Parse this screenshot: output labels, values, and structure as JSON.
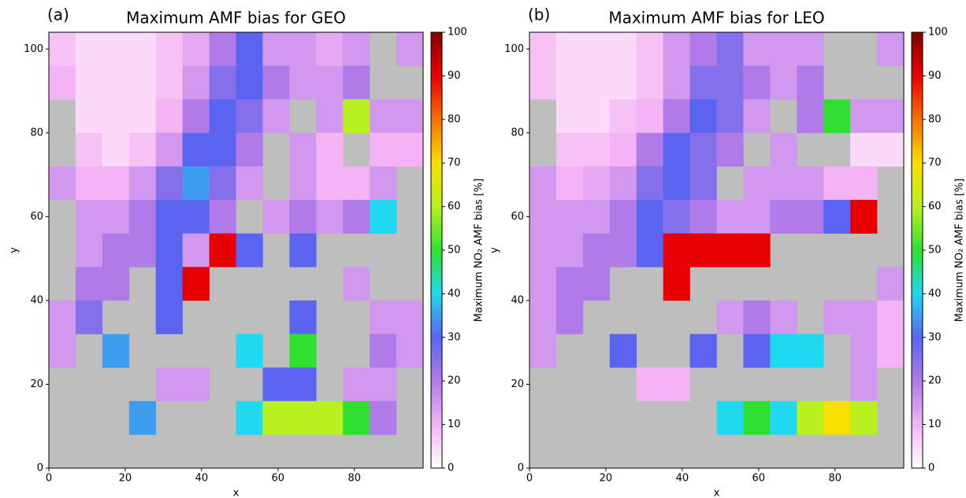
{
  "chart_data": [
    {
      "type": "heatmap",
      "panel_label": "(a)",
      "title": "Maximum AMF bias for GEO",
      "xlabel": "x",
      "ylabel": "y",
      "xlim": [
        0,
        98
      ],
      "ylim": [
        0,
        104
      ],
      "xticks": [
        0,
        20,
        40,
        60,
        80
      ],
      "yticks": [
        0,
        20,
        40,
        60,
        80,
        100
      ],
      "xbins": [
        0,
        7,
        14,
        21,
        28,
        35,
        42,
        49,
        56,
        63,
        70,
        77,
        84,
        91,
        98
      ],
      "ybins": [
        104,
        96,
        88,
        80,
        72,
        64,
        56,
        48,
        40,
        32,
        24,
        16,
        8,
        0
      ],
      "values": [
        [
          8,
          5,
          5,
          5,
          8,
          12,
          20,
          30,
          15,
          15,
          12,
          15,
          null,
          15
        ],
        [
          10,
          5,
          5,
          5,
          8,
          15,
          25,
          30,
          20,
          15,
          15,
          20,
          null,
          null
        ],
        [
          null,
          5,
          5,
          5,
          10,
          20,
          30,
          25,
          15,
          null,
          15,
          60,
          15,
          15
        ],
        [
          null,
          8,
          5,
          8,
          15,
          30,
          30,
          20,
          null,
          15,
          10,
          null,
          10,
          10
        ],
        [
          15,
          10,
          10,
          15,
          25,
          35,
          25,
          15,
          null,
          15,
          10,
          10,
          15,
          null
        ],
        [
          null,
          15,
          15,
          20,
          30,
          30,
          20,
          null,
          15,
          20,
          15,
          20,
          40,
          null
        ],
        [
          null,
          15,
          20,
          20,
          30,
          15,
          90,
          30,
          null,
          30,
          null,
          null,
          null,
          null
        ],
        [
          null,
          20,
          20,
          null,
          30,
          90,
          null,
          null,
          null,
          null,
          null,
          15,
          null,
          null
        ],
        [
          15,
          25,
          null,
          null,
          30,
          null,
          null,
          null,
          null,
          30,
          null,
          null,
          15,
          15
        ],
        [
          15,
          null,
          35,
          null,
          null,
          null,
          null,
          40,
          null,
          50,
          null,
          null,
          20,
          15
        ],
        [
          null,
          null,
          null,
          null,
          15,
          15,
          null,
          null,
          30,
          30,
          null,
          15,
          15,
          null
        ],
        [
          null,
          null,
          null,
          35,
          null,
          null,
          null,
          40,
          60,
          60,
          60,
          50,
          20,
          null
        ],
        [
          null,
          null,
          null,
          null,
          null,
          null,
          null,
          null,
          null,
          null,
          null,
          null,
          null,
          null
        ]
      ],
      "zlim": [
        0,
        100
      ],
      "zticks": [
        0,
        10,
        20,
        30,
        40,
        50,
        60,
        70,
        80,
        90,
        100
      ],
      "colorbar_label": "Maximum NO₂ AMF bias [%]",
      "colormap": [
        "#ffffff",
        "#f4b3f4",
        "#b07be8",
        "#5a64f0",
        "#20d8f0",
        "#30e030",
        "#b8f020",
        "#f8e000",
        "#f87000",
        "#e80000",
        "#800000"
      ],
      "missing_color": "#bebebe"
    },
    {
      "type": "heatmap",
      "panel_label": "(b)",
      "title": "Maximum AMF bias for LEO",
      "xlabel": "x",
      "ylabel": "y",
      "xlim": [
        0,
        98
      ],
      "ylim": [
        0,
        104
      ],
      "xticks": [
        0,
        20,
        40,
        60,
        80
      ],
      "yticks": [
        0,
        20,
        40,
        60,
        80,
        100
      ],
      "xbins": [
        0,
        7,
        14,
        21,
        28,
        35,
        42,
        49,
        56,
        63,
        70,
        77,
        84,
        91,
        98
      ],
      "ybins": [
        104,
        96,
        88,
        80,
        72,
        64,
        56,
        48,
        40,
        32,
        24,
        16,
        8,
        0
      ],
      "values": [
        [
          8,
          5,
          5,
          5,
          8,
          15,
          20,
          25,
          15,
          15,
          15,
          null,
          null,
          15
        ],
        [
          8,
          5,
          5,
          5,
          8,
          15,
          25,
          25,
          20,
          15,
          20,
          null,
          null,
          null
        ],
        [
          null,
          5,
          5,
          8,
          10,
          20,
          30,
          25,
          15,
          null,
          20,
          50,
          15,
          15
        ],
        [
          null,
          8,
          8,
          10,
          20,
          30,
          25,
          20,
          null,
          15,
          null,
          null,
          5,
          5
        ],
        [
          15,
          10,
          12,
          15,
          25,
          30,
          25,
          null,
          15,
          15,
          15,
          10,
          10,
          null
        ],
        [
          15,
          15,
          15,
          20,
          30,
          25,
          20,
          15,
          15,
          20,
          20,
          30,
          90,
          null
        ],
        [
          15,
          15,
          20,
          20,
          30,
          90,
          90,
          90,
          90,
          null,
          null,
          null,
          null,
          null
        ],
        [
          15,
          20,
          20,
          null,
          null,
          90,
          null,
          null,
          null,
          null,
          null,
          null,
          null,
          15
        ],
        [
          15,
          20,
          null,
          null,
          null,
          null,
          null,
          15,
          20,
          15,
          null,
          15,
          15,
          10
        ],
        [
          15,
          null,
          null,
          30,
          null,
          null,
          30,
          null,
          30,
          40,
          40,
          null,
          15,
          10
        ],
        [
          null,
          null,
          null,
          null,
          10,
          10,
          null,
          null,
          null,
          null,
          null,
          null,
          15,
          null
        ],
        [
          null,
          null,
          null,
          null,
          null,
          null,
          null,
          40,
          50,
          40,
          60,
          70,
          60,
          null
        ],
        [
          null,
          null,
          null,
          null,
          null,
          null,
          null,
          null,
          null,
          null,
          null,
          null,
          null,
          null
        ]
      ],
      "zlim": [
        0,
        100
      ],
      "zticks": [
        0,
        10,
        20,
        30,
        40,
        50,
        60,
        70,
        80,
        90,
        100
      ],
      "colorbar_label": "Maximum NO₂ AMF bias [%]",
      "colormap": [
        "#ffffff",
        "#f4b3f4",
        "#b07be8",
        "#5a64f0",
        "#20d8f0",
        "#30e030",
        "#b8f020",
        "#f8e000",
        "#f87000",
        "#e80000",
        "#800000"
      ],
      "missing_color": "#bebebe"
    }
  ]
}
